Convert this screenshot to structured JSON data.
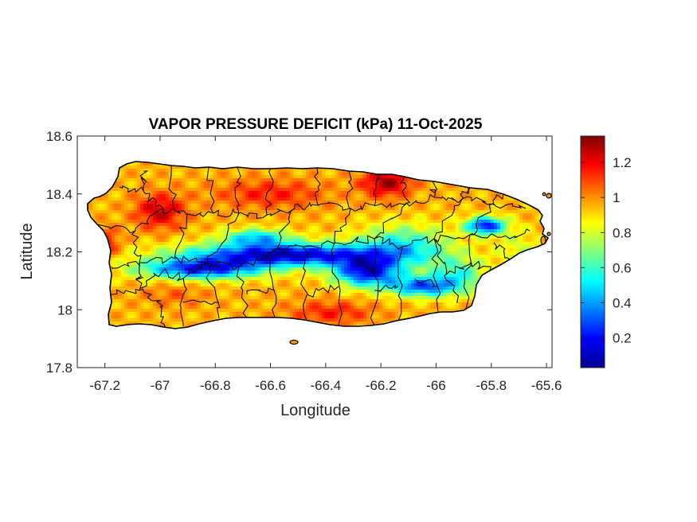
{
  "figure": {
    "title": "VAPOR PRESSURE DEFICIT (kPa) 11-Oct-2025",
    "xlabel": "Longitude",
    "ylabel": "Latitude"
  },
  "chart_data": {
    "type": "heatmap",
    "title": "VAPOR PRESSURE DEFICIT (kPa) 11-Oct-2025",
    "xlabel": "Longitude",
    "ylabel": "Latitude",
    "xlim": [
      -67.3,
      -65.58
    ],
    "ylim": [
      17.8,
      18.6
    ],
    "x_ticks": [
      -67.2,
      -67,
      -66.8,
      -66.6,
      -66.4,
      -66.2,
      -66,
      -65.8,
      -65.6
    ],
    "x_tick_labels": [
      "-67.2",
      "-67",
      "-66.8",
      "-66.6",
      "-66.4",
      "-66.2",
      "-66",
      "-65.8",
      "-65.6"
    ],
    "y_ticks": [
      17.8,
      18,
      18.2,
      18.4,
      18.6
    ],
    "y_tick_labels": [
      "17.8",
      "18",
      "18.2",
      "18.4",
      "18.6"
    ],
    "colorbar": {
      "colormap": "jet",
      "range": [
        0.03,
        1.35
      ],
      "ticks": [
        0.2,
        0.4,
        0.6,
        0.8,
        1,
        1.2
      ],
      "tick_labels": [
        "0.2",
        "0.4",
        "0.6",
        "0.8",
        "1",
        "1.2"
      ]
    },
    "grid": false,
    "field": {
      "background": 0.95,
      "lobes": [
        {
          "lon": -66.55,
          "lat": 18.19,
          "slon": 0.35,
          "slat": 0.04,
          "d": -0.85
        },
        {
          "lon": -66.85,
          "lat": 18.14,
          "slon": 0.22,
          "slat": 0.035,
          "d": -0.7
        },
        {
          "lon": -66.25,
          "lat": 18.13,
          "slon": 0.12,
          "slat": 0.05,
          "d": -0.75
        },
        {
          "lon": -66.05,
          "lat": 18.08,
          "slon": 0.12,
          "slat": 0.035,
          "d": -0.6
        },
        {
          "lon": -65.82,
          "lat": 18.29,
          "slon": 0.07,
          "slat": 0.03,
          "d": -0.75
        },
        {
          "lon": -66.12,
          "lat": 18.22,
          "slon": 0.17,
          "slat": 0.07,
          "d": -0.4
        },
        {
          "lon": -66.65,
          "lat": 18.25,
          "slon": 0.12,
          "slat": 0.03,
          "d": -0.45
        },
        {
          "lon": -66.18,
          "lat": 18.44,
          "slon": 0.09,
          "slat": 0.05,
          "d": 0.35
        },
        {
          "lon": -66.6,
          "lat": 18.4,
          "slon": 0.2,
          "slat": 0.05,
          "d": 0.2
        },
        {
          "lon": -67.0,
          "lat": 18.34,
          "slon": 0.09,
          "slat": 0.06,
          "d": 0.3
        },
        {
          "lon": -67.2,
          "lat": 18.23,
          "slon": 0.05,
          "slat": 0.05,
          "d": 0.25
        },
        {
          "lon": -66.38,
          "lat": 17.99,
          "slon": 0.15,
          "slat": 0.04,
          "d": 0.2
        },
        {
          "lon": -66.95,
          "lat": 18.05,
          "slon": 0.12,
          "slat": 0.04,
          "d": 0.1
        },
        {
          "lon": -65.92,
          "lat": 18.12,
          "slon": 0.1,
          "slat": 0.06,
          "d": -0.35
        },
        {
          "lon": -65.7,
          "lat": 18.2,
          "slon": 0.08,
          "slat": 0.08,
          "d": -0.15
        }
      ]
    }
  }
}
